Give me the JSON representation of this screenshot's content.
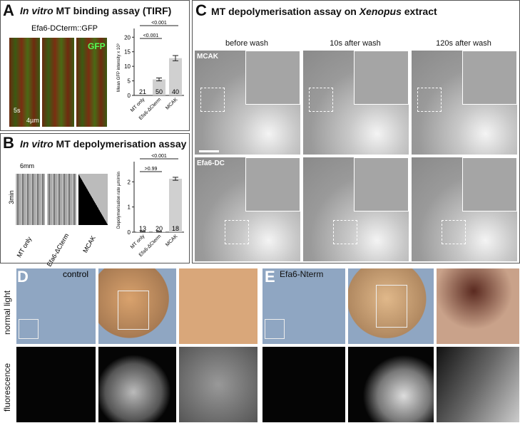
{
  "panelA": {
    "letter": "A",
    "title_italic": "In vitro",
    "title_rest": " MT binding assay (TIRF)",
    "kymo_label": "Efa6-DCterm::GFP",
    "gfp_label": "GFP",
    "time_scale": "5s",
    "length_scale": "4µm"
  },
  "panelB": {
    "letter": "B",
    "title_italic": "In vitro",
    "title_rest": " MT depolymerisation assay",
    "length_scale": "6mm",
    "time_scale": "3min",
    "kymo_labels": [
      "MT only",
      "Efa6-ΔCterm",
      "MCAK"
    ]
  },
  "panelC": {
    "letter": "C",
    "title_rest": "MT depolymerisation assay on ",
    "title_italic": "Xenopus",
    "title_end": " extract",
    "columns": [
      "before wash",
      "10s after wash",
      "120s after wash"
    ],
    "rows": [
      "MCAK",
      "Efa6-DC"
    ]
  },
  "panelD": {
    "letter": "D",
    "condition": "control",
    "rows": [
      "normal light",
      "fluorescence"
    ]
  },
  "panelE": {
    "letter": "E",
    "condition": "Efa6-Nterm"
  },
  "chart_data": [
    {
      "type": "bar",
      "panel": "A",
      "categories": [
        "MT only",
        "Efa6-ΔCterm",
        "MCAK"
      ],
      "values": [
        0,
        5.5,
        12.8
      ],
      "errors": [
        0,
        0.5,
        0.9
      ],
      "n": [
        "21",
        "50",
        "40"
      ],
      "ylabel": "Mean GFP intensity x 10³",
      "ylim": [
        0,
        23
      ],
      "yticks": [
        0,
        5,
        10,
        15,
        20
      ],
      "comparisons": [
        {
          "pair": [
            "MT only",
            "Efa6-ΔCterm"
          ],
          "label": "<0.001"
        },
        {
          "pair": [
            "MT only",
            "MCAK"
          ],
          "label": "<0.001"
        }
      ]
    },
    {
      "type": "bar",
      "panel": "B",
      "categories": [
        "MT only",
        "Efa6-ΔCterm",
        "MCAK"
      ],
      "values": [
        0.02,
        0.02,
        2.12
      ],
      "errors": [
        0.01,
        0.01,
        0.06
      ],
      "n": [
        "13",
        "20",
        "18"
      ],
      "ylabel": "Depolymerisation rate µm/min",
      "ylim": [
        0,
        2.8
      ],
      "yticks": [
        0,
        1,
        2
      ],
      "comparisons": [
        {
          "pair": [
            "MT only",
            "Efa6-ΔCterm"
          ],
          "label": ">0.99"
        },
        {
          "pair": [
            "MT only",
            "MCAK"
          ],
          "label": "<0.001"
        }
      ]
    }
  ]
}
